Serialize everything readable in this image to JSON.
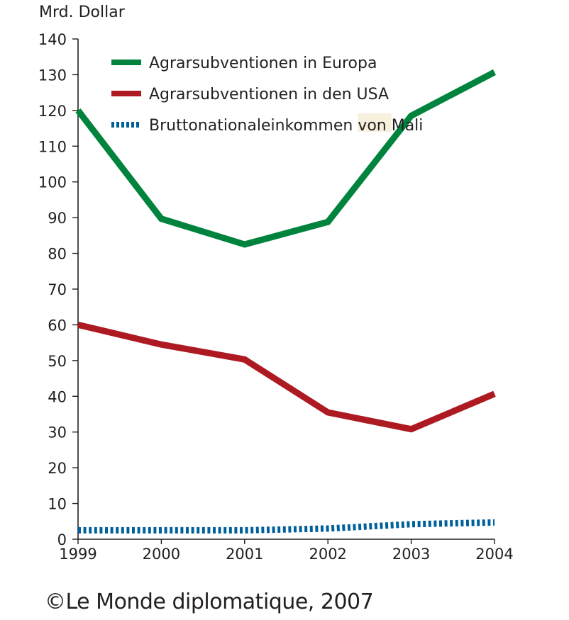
{
  "chart_data": {
    "type": "line",
    "title": "",
    "ylabel": "Mrd. Dollar",
    "xlabel": "",
    "x": [
      1999,
      2000,
      2001,
      2002,
      2003,
      2004
    ],
    "x_tick_labels": [
      "1999",
      "2000",
      "2001",
      "2002",
      "2003",
      "2004"
    ],
    "ylim": [
      0,
      140
    ],
    "y_ticks": [
      0,
      10,
      20,
      30,
      40,
      50,
      60,
      70,
      80,
      90,
      100,
      110,
      120,
      130,
      140
    ],
    "y_tick_labels": [
      "0",
      "10",
      "20",
      "30",
      "40",
      "50",
      "60",
      "70",
      "80",
      "90",
      "100",
      "110",
      "120",
      "130",
      "140"
    ],
    "grid": false,
    "legend_position": "top",
    "series": [
      {
        "name": "Agrarsubventionen in Europa",
        "color": "#00843d",
        "style": "solid",
        "values": [
          120,
          89.7,
          82.5,
          88.8,
          118.5,
          130.7
        ]
      },
      {
        "name": "Agrarsubventionen in den USA",
        "color": "#ad1a22",
        "style": "solid",
        "values": [
          60,
          54.5,
          50.3,
          35.5,
          30.8,
          40.7
        ]
      },
      {
        "name": "Bruttonationaleinkommen von Mali",
        "color": "#00609c",
        "style": "dotted",
        "values": [
          2.5,
          2.5,
          2.5,
          3.0,
          4.2,
          4.7
        ]
      }
    ]
  },
  "legend": {
    "items": [
      {
        "label_pre": "Agrarsubventionen in Europa",
        "label_hl": "",
        "label_post": ""
      },
      {
        "label_pre": "Agrarsubventionen in den USA",
        "label_hl": "",
        "label_post": ""
      },
      {
        "label_pre": "Bruttonationaleinkommen ",
        "label_hl": "von ",
        "label_post": "Mali"
      }
    ],
    "highlight_color": "#f7f0dc"
  },
  "footer": {
    "credit": "©Le Monde diplomatique, 2007"
  }
}
